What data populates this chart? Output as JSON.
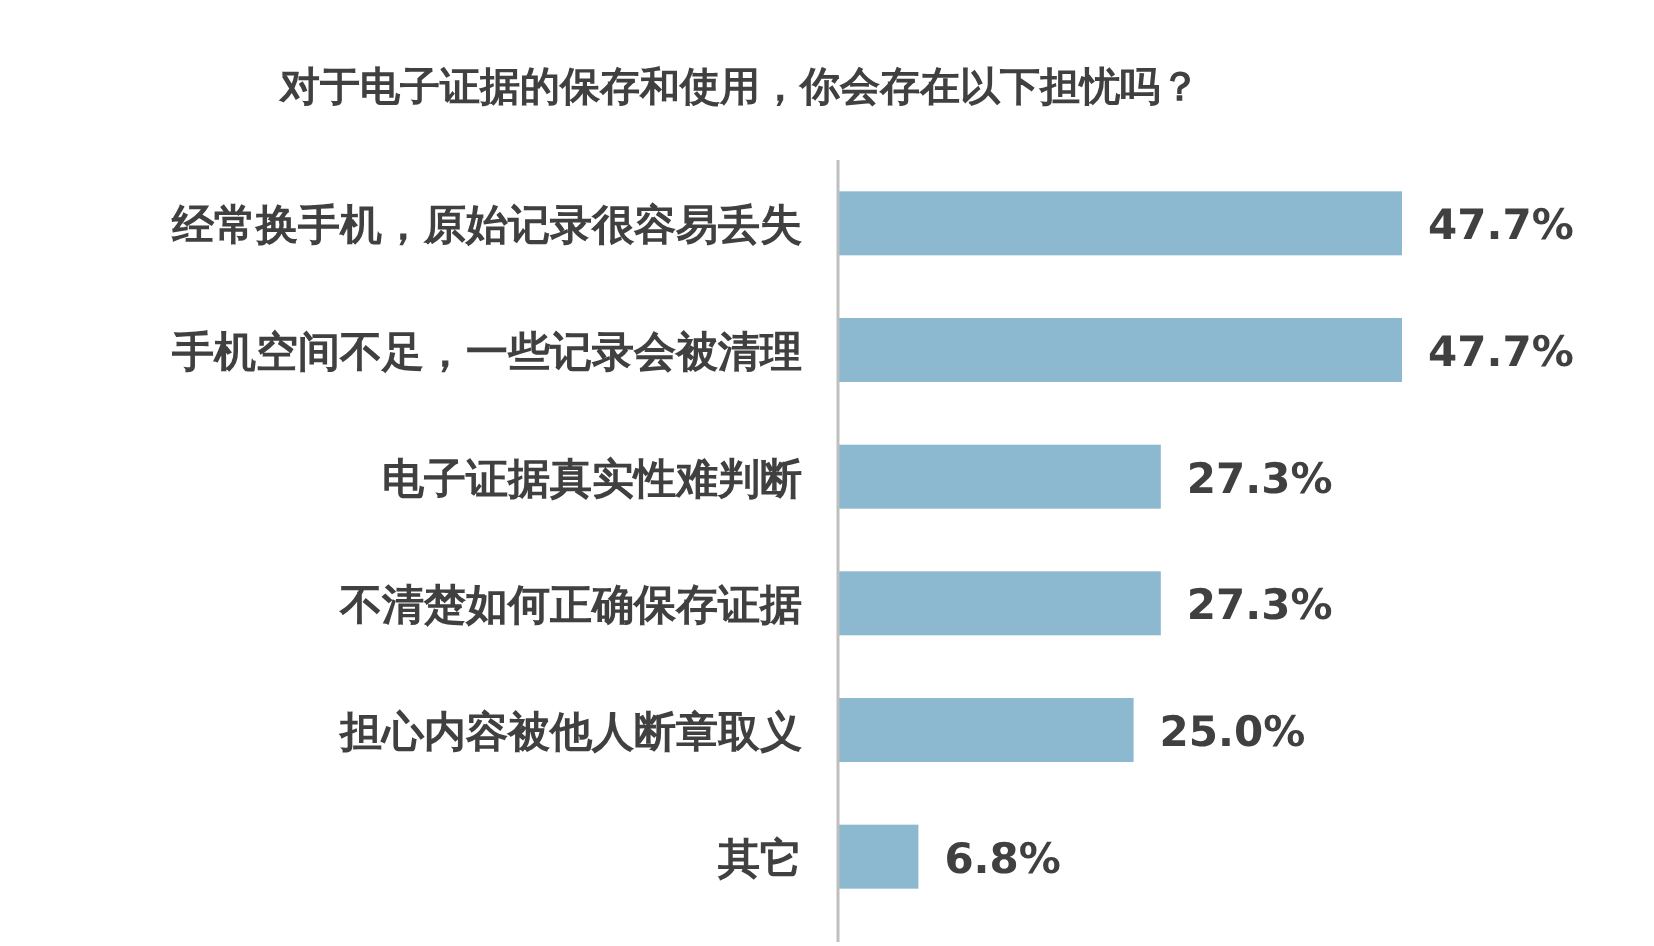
{
  "chart_data": {
    "type": "bar",
    "orientation": "horizontal",
    "title": "对于电子证据的保存和使用，你会存在以下担忧吗？",
    "categories": [
      "经常换手机，原始记录很容易丢失",
      "手机空间不足，一些记录会被清理",
      "电子证据真实性难判断",
      "不清楚如何正确保存证据",
      "担心内容被他人断章取义",
      "其它"
    ],
    "values": [
      47.7,
      47.7,
      27.3,
      27.3,
      25.0,
      6.8
    ],
    "value_labels": [
      "47.7%",
      "47.7%",
      "27.3%",
      "27.3%",
      "25.0%",
      "6.8%"
    ],
    "color": "#8cb8d0"
  }
}
